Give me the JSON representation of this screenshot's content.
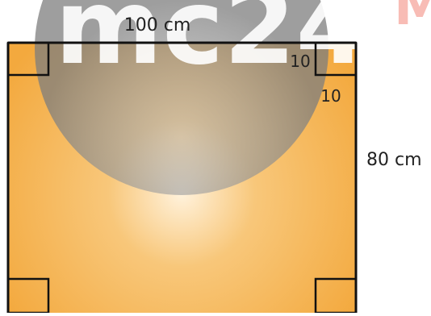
{
  "diagram": {
    "top_label": "100 cm",
    "side_label": "80 cm",
    "corner_label_horizontal": "10",
    "corner_label_vertical": "10"
  },
  "watermark": {
    "text": "mc24",
    "trailing_letter": "M"
  },
  "colors": {
    "sheet_outer": "#f3a93e",
    "sheet_mid": "#f8c77a",
    "sheet_center": "#fff2dc",
    "outline": "#111111",
    "watermark_circle": "#8e8e8e",
    "watermark_red": "#ef6b5a"
  }
}
